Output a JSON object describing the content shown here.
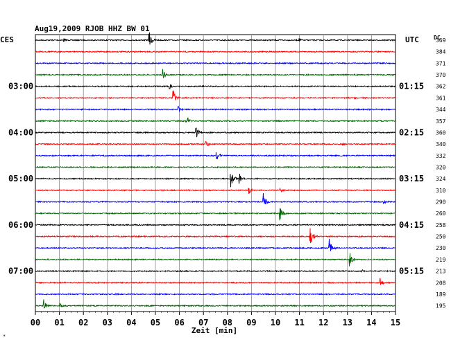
{
  "chart_data": {
    "type": "line",
    "title": "Aug19,2009  RJOB HHZ BW 01",
    "left_tz": "CES",
    "right_tz": "UTC",
    "dc_label": "DC",
    "xlabel": "Zeit [min]",
    "xlim": [
      0,
      15
    ],
    "xticks": [
      "00",
      "01",
      "02",
      "03",
      "04",
      "05",
      "06",
      "07",
      "08",
      "09",
      "10",
      "11",
      "12",
      "13",
      "14",
      "15"
    ],
    "grid": true,
    "trace_colors": [
      "#000000",
      "#ff0000",
      "#0000ff",
      "#006400"
    ],
    "left_hour_labels": [
      {
        "trace": 4,
        "text": "03:00"
      },
      {
        "trace": 8,
        "text": "04:00"
      },
      {
        "trace": 12,
        "text": "05:00"
      },
      {
        "trace": 16,
        "text": "06:00"
      },
      {
        "trace": 20,
        "text": "07:00"
      }
    ],
    "right_hour_labels": [
      {
        "trace": 4,
        "text": "01:15"
      },
      {
        "trace": 8,
        "text": "02:15"
      },
      {
        "trace": 12,
        "text": "03:15"
      },
      {
        "trace": 16,
        "text": "04:15"
      },
      {
        "trace": 20,
        "text": "05:15"
      }
    ],
    "dc_values": [
      "369",
      "384",
      "371",
      "370",
      "362",
      "361",
      "344",
      "357",
      "360",
      "340",
      "332",
      "320",
      "324",
      "310",
      "290",
      "260",
      "258",
      "250",
      "230",
      "219",
      "213",
      "208",
      "189",
      "195"
    ],
    "events": [
      {
        "trace": 0,
        "minute": 4.75,
        "amp": 12
      },
      {
        "trace": 0,
        "minute": 1.2,
        "amp": 3
      },
      {
        "trace": 0,
        "minute": 11.0,
        "amp": 3
      },
      {
        "trace": 3,
        "minute": 5.3,
        "amp": 10
      },
      {
        "trace": 4,
        "minute": 5.6,
        "amp": 4
      },
      {
        "trace": 5,
        "minute": 5.75,
        "amp": 11
      },
      {
        "trace": 5,
        "minute": 13.3,
        "amp": 3
      },
      {
        "trace": 6,
        "minute": 5.95,
        "amp": 5
      },
      {
        "trace": 7,
        "minute": 6.3,
        "amp": 9
      },
      {
        "trace": 8,
        "minute": 6.7,
        "amp": 8
      },
      {
        "trace": 9,
        "minute": 7.1,
        "amp": 6
      },
      {
        "trace": 9,
        "minute": 12.8,
        "amp": 3
      },
      {
        "trace": 10,
        "minute": 7.55,
        "amp": 11
      },
      {
        "trace": 12,
        "minute": 8.15,
        "amp": 14
      },
      {
        "trace": 12,
        "minute": 8.5,
        "amp": 8
      },
      {
        "trace": 13,
        "minute": 8.9,
        "amp": 6
      },
      {
        "trace": 13,
        "minute": 10.2,
        "amp": 4
      },
      {
        "trace": 14,
        "minute": 9.5,
        "amp": 13
      },
      {
        "trace": 14,
        "minute": 14.5,
        "amp": 4
      },
      {
        "trace": 15,
        "minute": 10.2,
        "amp": 15
      },
      {
        "trace": 17,
        "minute": 11.45,
        "amp": 16
      },
      {
        "trace": 18,
        "minute": 12.25,
        "amp": 15
      },
      {
        "trace": 19,
        "minute": 13.1,
        "amp": 10
      },
      {
        "trace": 20,
        "minute": 13.6,
        "amp": 3
      },
      {
        "trace": 21,
        "minute": 14.35,
        "amp": 8
      },
      {
        "trace": 23,
        "minute": 0.35,
        "amp": 12
      },
      {
        "trace": 23,
        "minute": 1.0,
        "amp": 5
      }
    ]
  },
  "footer_mark": "*"
}
